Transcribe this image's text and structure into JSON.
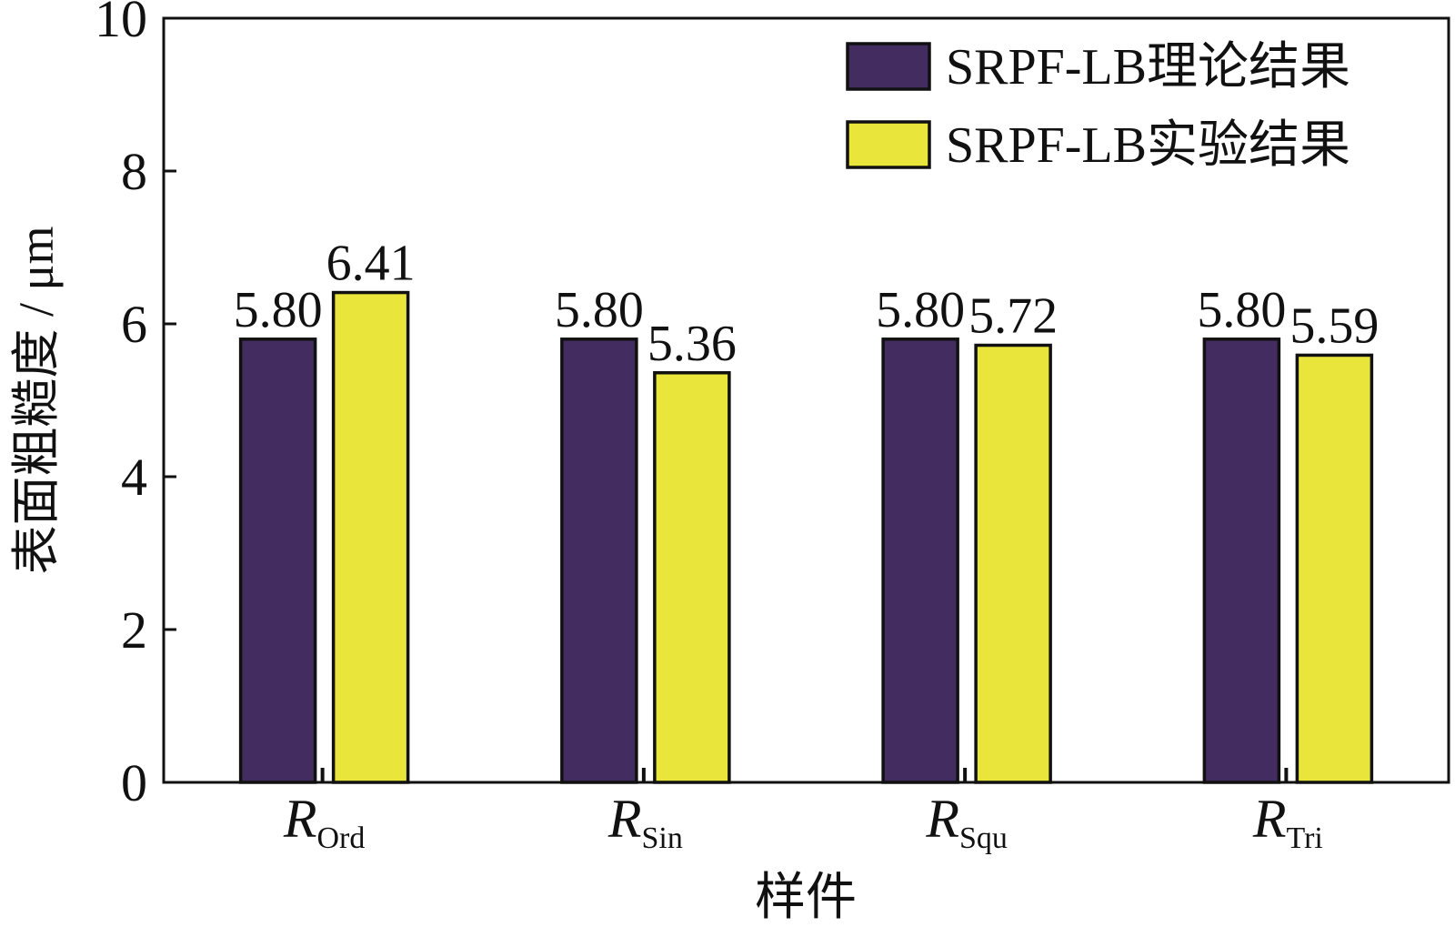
{
  "chart_data": {
    "type": "bar",
    "title": "",
    "xlabel": "样件",
    "ylabel": "表面粗糙度 / μm",
    "ylim": [
      0,
      10
    ],
    "yticks": [
      "0",
      "2",
      "4",
      "6",
      "8",
      "10"
    ],
    "categories": [
      {
        "main": "R",
        "sub": "Ord"
      },
      {
        "main": "R",
        "sub": "Sin"
      },
      {
        "main": "R",
        "sub": "Squ"
      },
      {
        "main": "R",
        "sub": "Tri"
      }
    ],
    "series": [
      {
        "name": "SRPF-LB理论结果",
        "color": "#432C5F",
        "values": [
          5.8,
          5.8,
          5.8,
          5.8
        ],
        "labels": [
          "5.80",
          "5.80",
          "5.80",
          "5.80"
        ]
      },
      {
        "name": "SRPF-LB实验结果",
        "color": "#EAE53B",
        "values": [
          6.41,
          5.36,
          5.72,
          5.59
        ],
        "labels": [
          "6.41",
          "5.36",
          "5.72",
          "5.59"
        ]
      }
    ],
    "legend_position": "top-right",
    "grid": false
  }
}
